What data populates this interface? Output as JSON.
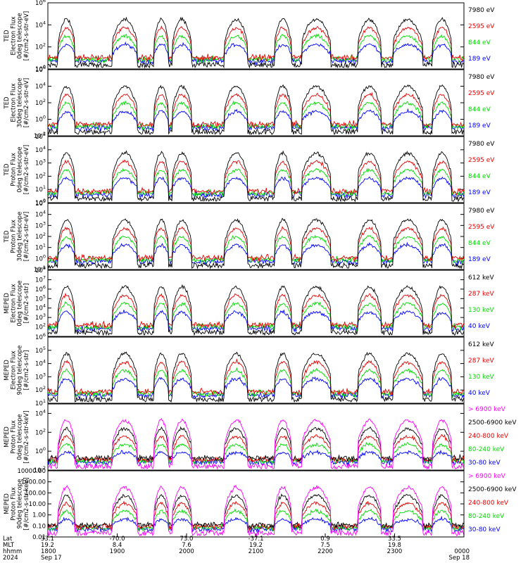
{
  "colors": {
    "black": "#000000",
    "red": "#e60000",
    "green": "#00dd00",
    "blue": "#0000ff",
    "magenta": "#ff00ff"
  },
  "chart_data": {
    "type": "line",
    "x_ticks": [
      "1800",
      "1900",
      "2000",
      "2100",
      "2200",
      "2300",
      "0000"
    ],
    "x_axis_rows": {
      "labels": [
        "Lat",
        "MLT",
        "hhmm",
        "2024"
      ],
      "Lat": [
        "33.1",
        "-70.0",
        "73.0",
        "-37.1",
        "0.9",
        "33.5",
        ""
      ],
      "MLT": [
        "19.2",
        "8.4",
        "7.6",
        "19.2",
        "7.5",
        "19.8",
        ""
      ],
      "hhmm": [
        "1800",
        "1900",
        "2000",
        "2100",
        "2200",
        "2300",
        "0000"
      ],
      "date": [
        "Sep 17",
        "",
        "",
        "",
        "",
        "",
        "Sep 18"
      ]
    },
    "panels": [
      {
        "ylabel": [
          "TED",
          "Electron Flux",
          "0deg telescope",
          "[#/cm2-s-str-eV]"
        ],
        "log_range": [
          0,
          6
        ],
        "yticks": [
          {
            "v": 0,
            "t": "10^0"
          },
          {
            "v": 2,
            "t": "10^2"
          },
          {
            "v": 4,
            "t": "10^4"
          },
          {
            "v": 6,
            "t": "10^6"
          }
        ],
        "series": [
          {
            "name": "7980 eV",
            "color": "black"
          },
          {
            "name": "2595 eV",
            "color": "red"
          },
          {
            "name": "844 eV",
            "color": "green"
          },
          {
            "name": "189 eV",
            "color": "blue"
          }
        ]
      },
      {
        "ylabel": [
          "TED",
          "Electron Flux",
          "30deg telescope",
          "[#/cm2-s-str-eV]"
        ],
        "log_range": [
          -2,
          6
        ],
        "yticks": [
          {
            "v": -2,
            "t": "10^-2"
          },
          {
            "v": 0,
            "t": "10^0"
          },
          {
            "v": 2,
            "t": "10^2"
          },
          {
            "v": 4,
            "t": "10^4"
          },
          {
            "v": 6,
            "t": "10^6"
          }
        ],
        "series": [
          {
            "name": "7980 eV",
            "color": "black"
          },
          {
            "name": "2595 eV",
            "color": "red"
          },
          {
            "name": "844 eV",
            "color": "green"
          },
          {
            "name": "189 eV",
            "color": "blue"
          }
        ]
      },
      {
        "ylabel": [
          "TED",
          "Proton Flux",
          "0deg telescope",
          "[#/cm2-s-str-eV]"
        ],
        "log_range": [
          0,
          5
        ],
        "yticks": [
          {
            "v": 0,
            "t": "10^0"
          },
          {
            "v": 1,
            "t": "10^1"
          },
          {
            "v": 2,
            "t": "10^2"
          },
          {
            "v": 3,
            "t": "10^3"
          },
          {
            "v": 4,
            "t": "10^4"
          },
          {
            "v": 5,
            "t": "10^5"
          }
        ],
        "series": [
          {
            "name": "7980 eV",
            "color": "black"
          },
          {
            "name": "2595 eV",
            "color": "red"
          },
          {
            "name": "844 eV",
            "color": "green"
          },
          {
            "name": "189 eV",
            "color": "blue"
          }
        ]
      },
      {
        "ylabel": [
          "TED",
          "Proton Flux",
          "30deg telescope",
          "[#/cm2-s-str-eV]"
        ],
        "log_range": [
          -1,
          5
        ],
        "yticks": [
          {
            "v": -1,
            "t": "10^-1"
          },
          {
            "v": 0,
            "t": "10^0"
          },
          {
            "v": 1,
            "t": "10^1"
          },
          {
            "v": 2,
            "t": "10^2"
          },
          {
            "v": 3,
            "t": "10^3"
          },
          {
            "v": 4,
            "t": "10^4"
          },
          {
            "v": 5,
            "t": "10^5"
          }
        ],
        "series": [
          {
            "name": "7980 eV",
            "color": "black"
          },
          {
            "name": "2595 eV",
            "color": "red"
          },
          {
            "name": "844 eV",
            "color": "green"
          },
          {
            "name": "189 eV",
            "color": "blue"
          }
        ]
      },
      {
        "ylabel": [
          "MEPED",
          "Electron Flux",
          "0deg telescope",
          "[#/cm2-s-str]"
        ],
        "log_range": [
          1,
          8
        ],
        "yticks": [
          {
            "v": 2,
            "t": "10^2"
          },
          {
            "v": 3,
            "t": "10^3"
          },
          {
            "v": 4,
            "t": "10^4"
          },
          {
            "v": 5,
            "t": "10^5"
          },
          {
            "v": 6,
            "t": "10^6"
          },
          {
            "v": 7,
            "t": "10^7"
          },
          {
            "v": 8,
            "t": "10^8"
          }
        ],
        "series": [
          {
            "name": "612 keV",
            "color": "black"
          },
          {
            "name": "287 keV",
            "color": "red"
          },
          {
            "name": "130 keV",
            "color": "green"
          },
          {
            "name": "40 keV",
            "color": "blue"
          }
        ]
      },
      {
        "ylabel": [
          "MEPED",
          "Electron Flux",
          "90deg telescope",
          "[#/cm2-s-str]"
        ],
        "log_range": [
          1,
          6
        ],
        "yticks": [
          {
            "v": 1,
            "t": "10^1"
          },
          {
            "v": 2,
            "t": "10^2"
          },
          {
            "v": 3,
            "t": "10^3"
          },
          {
            "v": 4,
            "t": "10^4"
          },
          {
            "v": 5,
            "t": "10^5"
          },
          {
            "v": 6,
            "t": "10^6"
          }
        ],
        "series": [
          {
            "name": "612 keV",
            "color": "black"
          },
          {
            "name": "287 keV",
            "color": "red"
          },
          {
            "name": "130 keV",
            "color": "green"
          },
          {
            "name": "40 keV",
            "color": "blue"
          }
        ]
      },
      {
        "ylabel": [
          "MEPED",
          "Proton Flux",
          "0deg telescope",
          "[#/cm2-s-str-keV]"
        ],
        "log_range": [
          -2,
          5
        ],
        "yticks": [
          {
            "v": -2,
            "t": "10^-2"
          },
          {
            "v": 0,
            "t": "10^0"
          },
          {
            "v": 2,
            "t": "10^2"
          },
          {
            "v": 4,
            "t": "10^4"
          }
        ],
        "series": [
          {
            "name": "> 6900 keV",
            "color": "magenta"
          },
          {
            "name": "2500-6900 keV",
            "color": "black"
          },
          {
            "name": "240-800 keV",
            "color": "red"
          },
          {
            "name": "80-240 keV",
            "color": "green"
          },
          {
            "name": "30-80 keV",
            "color": "blue"
          }
        ]
      },
      {
        "ylabel": [
          "MEPED",
          "Proton Flux",
          "90deg telescope",
          "[#/cm2-s-str-keV]"
        ],
        "log_range": [
          -2,
          4
        ],
        "yticks": [
          {
            "v": -2,
            "t": "0.01"
          },
          {
            "v": -1,
            "t": "0.10"
          },
          {
            "v": 0,
            "t": "1.00"
          },
          {
            "v": 1,
            "t": "10.00"
          },
          {
            "v": 2,
            "t": "100.00"
          },
          {
            "v": 3,
            "t": "1000.00"
          },
          {
            "v": 4,
            "t": "10000.00"
          }
        ],
        "series": [
          {
            "name": "> 6900 keV",
            "color": "magenta"
          },
          {
            "name": "2500-6900 keV",
            "color": "black"
          },
          {
            "name": "240-800 keV",
            "color": "red"
          },
          {
            "name": "80-240 keV",
            "color": "green"
          },
          {
            "name": "30-80 keV",
            "color": "blue"
          }
        ]
      }
    ]
  }
}
